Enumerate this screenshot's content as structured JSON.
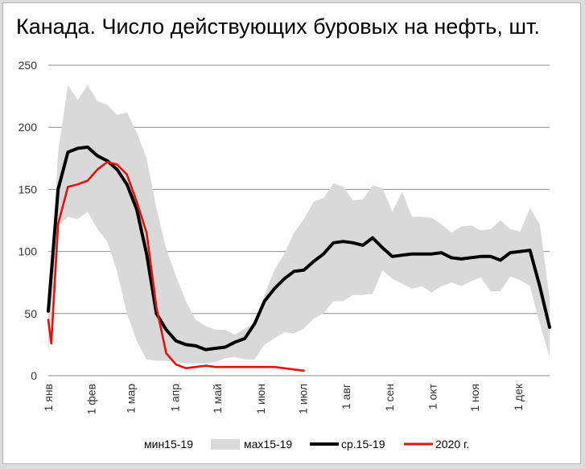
{
  "chart_data": {
    "type": "line",
    "title": "Канада. Число действующих буровых на нефть, шт.",
    "ylim": [
      0,
      250
    ],
    "yticks": [
      0,
      50,
      100,
      150,
      200,
      250
    ],
    "xlim": [
      0,
      51
    ],
    "x_ticks": [
      {
        "week": 0,
        "label": "1 янв"
      },
      {
        "week": 4.4,
        "label": "1 фев"
      },
      {
        "week": 8.4,
        "label": "1 мар"
      },
      {
        "week": 12.9,
        "label": "1 апр"
      },
      {
        "week": 17.2,
        "label": "1 май"
      },
      {
        "week": 21.6,
        "label": "1 июн"
      },
      {
        "week": 25.9,
        "label": "1 июл"
      },
      {
        "week": 30.3,
        "label": "1 авг"
      },
      {
        "week": 34.7,
        "label": "1 сен"
      },
      {
        "week": 39.1,
        "label": "1 окт"
      },
      {
        "week": 43.4,
        "label": "1 ноя"
      },
      {
        "week": 47.8,
        "label": "1 дек"
      }
    ],
    "grid": true,
    "legend_position": "bottom",
    "colors": {
      "band": "#d9d9d9",
      "avg": "#000000",
      "y2020": "#e3120b"
    },
    "series": [
      {
        "name": "мин15-19",
        "key": "min",
        "x": [
          0,
          1,
          2,
          3,
          4,
          5,
          6,
          7,
          8,
          9,
          10,
          11,
          12,
          13,
          14,
          15,
          16,
          17,
          18,
          19,
          20,
          21,
          22,
          23,
          24,
          25,
          26,
          27,
          28,
          29,
          30,
          31,
          32,
          33,
          34,
          35,
          36,
          37,
          38,
          39,
          40,
          41,
          42,
          43,
          44,
          45,
          46,
          47,
          48,
          49,
          50,
          51
        ],
        "values": [
          18,
          120,
          128,
          126,
          132,
          118,
          108,
          84,
          50,
          28,
          13,
          12,
          12,
          11,
          10,
          10,
          10,
          11,
          14,
          15,
          13,
          13,
          25,
          30,
          35,
          34,
          38,
          46,
          50,
          60,
          60,
          65,
          65,
          66,
          85,
          78,
          74,
          70,
          72,
          67,
          72,
          75,
          72,
          76,
          79,
          68,
          68,
          80,
          77,
          72,
          42,
          15
        ]
      },
      {
        "name": "мах15-19",
        "key": "max",
        "x": [
          0,
          1,
          2,
          3,
          4,
          5,
          6,
          7,
          8,
          9,
          10,
          11,
          12,
          13,
          14,
          15,
          16,
          17,
          18,
          19,
          20,
          21,
          22,
          23,
          24,
          25,
          26,
          27,
          28,
          29,
          30,
          31,
          32,
          33,
          34,
          35,
          36,
          37,
          38,
          39,
          40,
          41,
          42,
          43,
          44,
          45,
          46,
          47,
          48,
          49,
          50,
          51
        ],
        "values": [
          45,
          180,
          234,
          222,
          234,
          221,
          218,
          210,
          212,
          196,
          175,
          135,
          102,
          80,
          60,
          45,
          40,
          37,
          37,
          33,
          38,
          42,
          65,
          85,
          98,
          115,
          126,
          140,
          143,
          155,
          152,
          141,
          142,
          153,
          151,
          132,
          148,
          128,
          128,
          127,
          122,
          115,
          120,
          121,
          117,
          118,
          125,
          118,
          116,
          135,
          122,
          62
        ]
      },
      {
        "name": "ср.15-19",
        "key": "avg",
        "x": [
          0,
          1,
          2,
          3,
          4,
          5,
          6,
          7,
          8,
          9,
          10,
          11,
          12,
          13,
          14,
          15,
          16,
          17,
          18,
          19,
          20,
          21,
          22,
          23,
          24,
          25,
          26,
          27,
          28,
          29,
          30,
          31,
          32,
          33,
          34,
          35,
          36,
          37,
          38,
          39,
          40,
          41,
          42,
          43,
          44,
          45,
          46,
          47,
          48,
          49,
          50,
          51
        ],
        "values": [
          52,
          150,
          180,
          183,
          184,
          177,
          173,
          166,
          154,
          134,
          98,
          50,
          37,
          28,
          25,
          24,
          21,
          22,
          23,
          27,
          30,
          42,
          60,
          70,
          78,
          84,
          85,
          92,
          98,
          107,
          108,
          107,
          105,
          111,
          103,
          96,
          97,
          98,
          98,
          98,
          99,
          95,
          94,
          95,
          96,
          96,
          93,
          99,
          100,
          101,
          72,
          39
        ]
      },
      {
        "name": "2020 г.",
        "key": "y2020",
        "x": [
          0,
          0.3,
          1,
          2,
          3,
          4,
          5,
          6,
          7,
          8,
          9,
          10,
          11,
          12,
          13,
          14,
          15,
          16,
          17,
          18,
          19,
          20,
          21,
          22,
          23,
          24,
          25,
          26
        ],
        "values": [
          45,
          26,
          122,
          152,
          154,
          157,
          166,
          172,
          170,
          162,
          140,
          115,
          55,
          18,
          9,
          6,
          7,
          8,
          7,
          7,
          7,
          7,
          7,
          7,
          7,
          6,
          5,
          4
        ]
      }
    ]
  }
}
